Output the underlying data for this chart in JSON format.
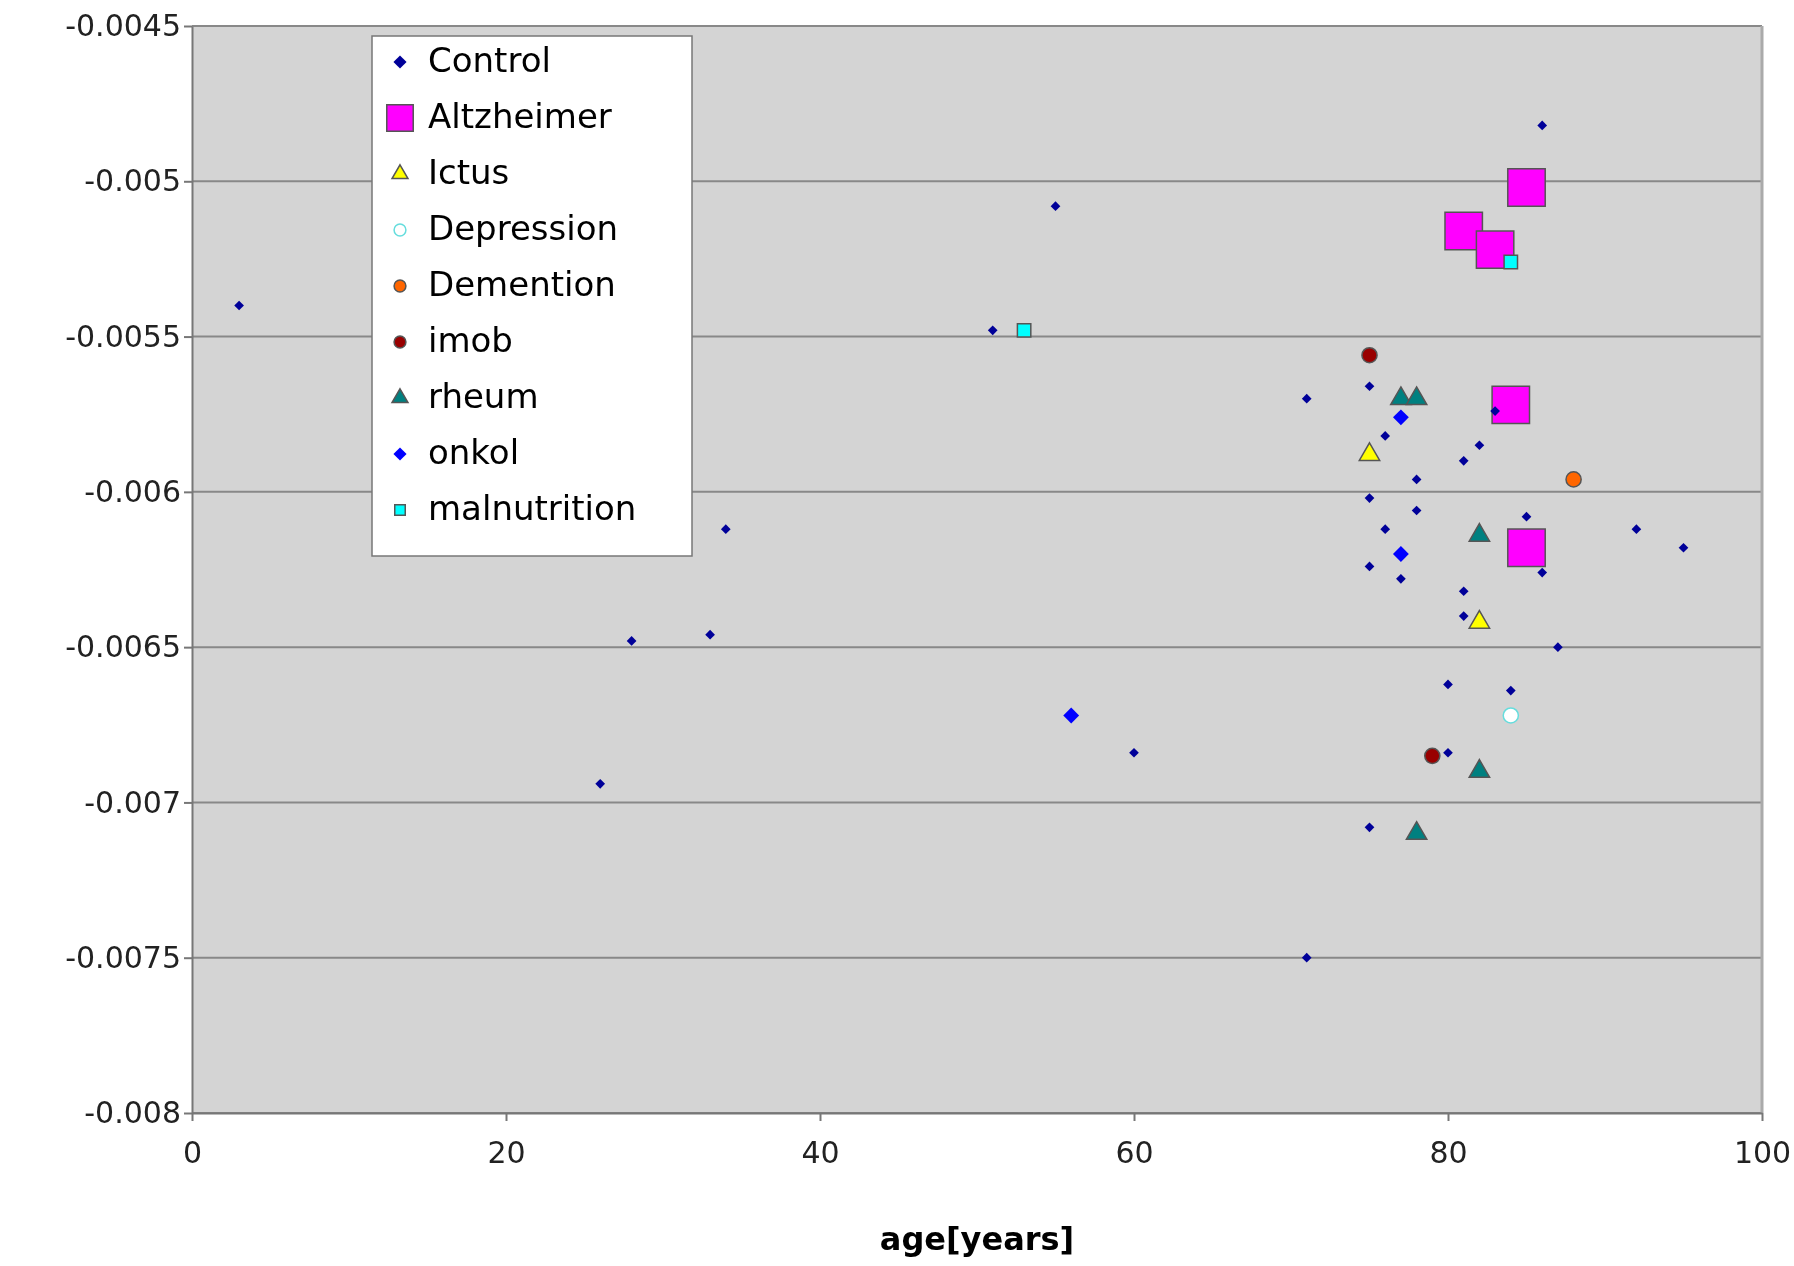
{
  "chart_data": {
    "type": "scatter",
    "xlabel": "age[years]",
    "xlim": [
      0,
      100
    ],
    "xticks": [
      0,
      20,
      40,
      60,
      80,
      100
    ],
    "ylim": [
      -0.008,
      -0.0045
    ],
    "yticks": [
      -0.008,
      -0.0075,
      -0.007,
      -0.0065,
      -0.006,
      -0.0055,
      -0.005,
      -0.0045
    ],
    "grid": "y",
    "legend": "top left",
    "series": [
      {
        "name": "Control",
        "color": "#000099",
        "marker": "diamond",
        "x": [
          3,
          55,
          51,
          34,
          28,
          33,
          26,
          60,
          71,
          71,
          86,
          75,
          76,
          78,
          81,
          82,
          83,
          75,
          78,
          76,
          75,
          77,
          81,
          81,
          85,
          86,
          92,
          95,
          87,
          80,
          84,
          80,
          75
        ],
        "values": [
          -0.0054,
          -0.00508,
          -0.00548,
          -0.00612,
          -0.00648,
          -0.00646,
          -0.00694,
          -0.00684,
          -0.0057,
          -0.0075,
          -0.00482,
          -0.00566,
          -0.00582,
          -0.00596,
          -0.0059,
          -0.00585,
          -0.00574,
          -0.00602,
          -0.00606,
          -0.00612,
          -0.00624,
          -0.00628,
          -0.00632,
          -0.0064,
          -0.00608,
          -0.00626,
          -0.00612,
          -0.00618,
          -0.0065,
          -0.00662,
          -0.00664,
          -0.00684,
          -0.00708
        ]
      },
      {
        "name": "Altzheimer",
        "color": "#ff00ff",
        "marker": "square",
        "x": [
          85,
          81,
          83,
          84,
          85
        ],
        "values": [
          -0.00502,
          -0.00516,
          -0.00522,
          -0.00572,
          -0.00618
        ]
      },
      {
        "name": "Ictus",
        "color": "#ffff00",
        "marker": "triangle",
        "x": [
          75,
          82
        ],
        "values": [
          -0.00588,
          -0.00642
        ]
      },
      {
        "name": "Depression",
        "color": "#ffffff",
        "marker": "circle",
        "x": [
          84
        ],
        "values": [
          -0.00672
        ]
      },
      {
        "name": "Demention",
        "color": "#ff6600",
        "marker": "circle",
        "x": [
          88
        ],
        "values": [
          -0.00596
        ]
      },
      {
        "name": "imob",
        "color": "#990000",
        "marker": "circle",
        "x": [
          75,
          79
        ],
        "values": [
          -0.00556,
          -0.00685
        ]
      },
      {
        "name": "rheum",
        "color": "#008080",
        "marker": "triangle",
        "x": [
          77,
          78,
          82,
          82,
          78
        ],
        "values": [
          -0.0057,
          -0.0057,
          -0.00614,
          -0.0069,
          -0.0071
        ]
      },
      {
        "name": "onkol",
        "color": "#0000ff",
        "marker": "diamond",
        "x": [
          77,
          77,
          56
        ],
        "values": [
          -0.00576,
          -0.0062,
          -0.00672
        ]
      },
      {
        "name": "malnutrition",
        "color": "#00ffff",
        "marker": "square",
        "x": [
          53,
          84
        ],
        "values": [
          -0.00548,
          -0.00526
        ]
      }
    ]
  }
}
